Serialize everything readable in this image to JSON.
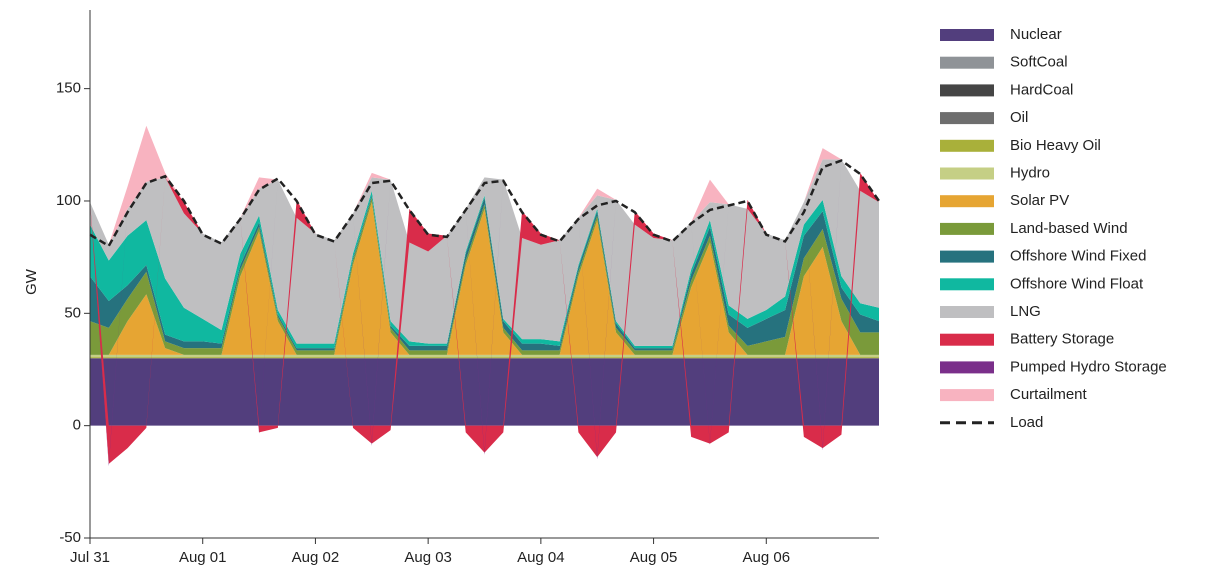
{
  "chart_data": {
    "type": "stacked-area",
    "y_label": "GW",
    "x": [
      0,
      4,
      8,
      12,
      16,
      20,
      24,
      28,
      32,
      36,
      40,
      44,
      48,
      52,
      56,
      60,
      64,
      68,
      72,
      76,
      80,
      84,
      88,
      92,
      96,
      100,
      104,
      108,
      112,
      116,
      120,
      124,
      128,
      132,
      136,
      140,
      144,
      148,
      152,
      156,
      160,
      164,
      168
    ],
    "xlim": [
      0,
      168
    ],
    "xticks": [
      {
        "value": 0,
        "label": "Jul 31"
      },
      {
        "value": 24,
        "label": "Aug 01"
      },
      {
        "value": 48,
        "label": "Aug 02"
      },
      {
        "value": 72,
        "label": "Aug 03"
      },
      {
        "value": 96,
        "label": "Aug 04"
      },
      {
        "value": 120,
        "label": "Aug 05"
      },
      {
        "value": 144,
        "label": "Aug 06"
      }
    ],
    "ylim": [
      -50,
      185
    ],
    "yticks": [
      -50,
      0,
      50,
      100,
      150
    ],
    "series": [
      {
        "name": "Nuclear",
        "color": "#523e7d",
        "values": [
          30,
          30,
          30,
          30,
          30,
          30,
          30,
          30,
          30,
          30,
          30,
          30,
          30,
          30,
          30,
          30,
          30,
          30,
          30,
          30,
          30,
          30,
          30,
          30,
          30,
          30,
          30,
          30,
          30,
          30,
          30,
          30,
          30,
          30,
          30,
          30,
          30,
          30,
          30,
          30,
          30,
          30,
          30
        ]
      },
      {
        "name": "SoftCoal",
        "color": "#8f9397",
        "values": [
          0,
          0,
          0,
          0,
          0,
          0,
          0,
          0,
          0,
          0,
          0,
          0,
          0,
          0,
          0,
          0,
          0,
          0,
          0,
          0,
          0,
          0,
          0,
          0,
          0,
          0,
          0,
          0,
          0,
          0,
          0,
          0,
          0,
          0,
          0,
          0,
          0,
          0,
          0,
          0,
          0,
          0,
          0
        ]
      },
      {
        "name": "HardCoal",
        "color": "#454545",
        "values": [
          0,
          0,
          0,
          0,
          0,
          0,
          0,
          0,
          0,
          0,
          0,
          0,
          0,
          0,
          0,
          0,
          0,
          0,
          0,
          0,
          0,
          0,
          0,
          0,
          0,
          0,
          0,
          0,
          0,
          0,
          0,
          0,
          0,
          0,
          0,
          0,
          0,
          0,
          0,
          0,
          0,
          0,
          0
        ]
      },
      {
        "name": "Oil",
        "color": "#6e6e6e",
        "values": [
          0,
          0,
          0,
          0,
          0,
          0,
          0,
          0,
          0,
          0,
          0,
          0,
          0,
          0,
          0,
          0,
          0,
          0,
          0,
          0,
          0,
          0,
          0,
          0,
          0,
          0,
          0,
          0,
          0,
          0,
          0,
          0,
          0,
          0,
          0,
          0,
          0,
          0,
          0,
          0,
          0,
          0,
          0
        ]
      },
      {
        "name": "Bio Heavy Oil",
        "color": "#a9b03a",
        "values": [
          0.5,
          0.5,
          0.5,
          0.5,
          0.5,
          0.5,
          0.5,
          0.5,
          0.5,
          0.5,
          0.5,
          0.5,
          0.5,
          0.5,
          0.5,
          0.5,
          0.5,
          0.5,
          0.5,
          0.5,
          0.5,
          0.5,
          0.5,
          0.5,
          0.5,
          0.5,
          0.5,
          0.5,
          0.5,
          0.5,
          0.5,
          0.5,
          0.5,
          0.5,
          0.5,
          0.5,
          0.5,
          0.5,
          0.5,
          0.5,
          0.5,
          0.5,
          0.5
        ]
      },
      {
        "name": "Hydro",
        "color": "#c5cf85",
        "values": [
          1,
          1,
          1,
          1,
          1,
          1,
          1,
          1,
          1,
          1,
          1,
          1,
          1,
          1,
          1,
          1,
          1,
          1,
          1,
          1,
          1,
          1,
          1,
          1,
          1,
          1,
          1,
          1,
          1,
          1,
          1,
          1,
          1,
          1,
          1,
          1,
          1,
          1,
          1,
          1,
          1,
          1,
          1
        ]
      },
      {
        "name": "Solar PV",
        "color": "#e6a533",
        "values": [
          0,
          0,
          15,
          27,
          3,
          0,
          0,
          0,
          35,
          55,
          15,
          0,
          0,
          0,
          40,
          68,
          10,
          0,
          0,
          0,
          40,
          65,
          10,
          0,
          0,
          0,
          35,
          60,
          10,
          0,
          0,
          0,
          30,
          50,
          10,
          0,
          0,
          0,
          35,
          48,
          15,
          0,
          0
        ]
      },
      {
        "name": "Land-based Wind",
        "color": "#7a9a3a",
        "values": [
          15,
          12,
          10,
          10,
          3,
          3,
          3,
          3,
          3,
          2,
          2,
          2,
          2,
          2,
          2,
          2,
          2,
          2,
          2,
          2,
          2,
          2,
          2,
          2,
          2,
          2,
          2,
          2,
          2,
          2,
          2,
          2,
          3,
          3,
          3,
          4,
          6,
          8,
          8,
          8,
          10,
          10,
          10
        ]
      },
      {
        "name": "Offshore Wind Fixed",
        "color": "#26727e",
        "values": [
          20,
          12,
          6,
          3,
          3,
          3,
          3,
          2,
          2,
          2,
          1,
          1,
          1,
          1,
          1,
          1,
          1,
          2,
          2,
          2,
          3,
          3,
          3,
          3,
          3,
          2,
          2,
          2,
          2,
          1,
          1,
          1,
          3,
          4,
          5,
          8,
          10,
          12,
          10,
          8,
          5,
          8,
          5
        ]
      },
      {
        "name": "Offshore Wind Float",
        "color": "#10b8a0",
        "values": [
          23,
          18,
          22,
          20,
          25,
          15,
          10,
          6,
          5,
          3,
          2,
          2,
          2,
          2,
          2,
          2,
          2,
          2,
          1,
          1,
          1,
          1,
          1,
          2,
          2,
          2,
          1,
          1,
          1,
          1,
          1,
          1,
          2,
          3,
          4,
          4,
          4,
          6,
          5,
          5,
          5,
          5,
          6
        ]
      },
      {
        "name": "LNG",
        "color": "#bfbfc1",
        "values": [
          10,
          7,
          12,
          17,
          45,
          42,
          38,
          39,
          16,
          12,
          58,
          56,
          49,
          46,
          18,
          6,
          63,
          44,
          41,
          48,
          19,
          8,
          62,
          45,
          42,
          45,
          21,
          6,
          54,
          54,
          48,
          47,
          21,
          8,
          45,
          49,
          34,
          25,
          10,
          18,
          52,
          50,
          47
        ]
      },
      {
        "name": "Battery Storage",
        "color": "#d92c4a",
        "values": [
          0,
          -17,
          -10,
          -1,
          0,
          5,
          0,
          0,
          0,
          -3,
          -1,
          8,
          0,
          0,
          -1,
          -8,
          -2,
          15,
          8,
          0,
          -3,
          -12,
          -3,
          12,
          5,
          0,
          -3,
          -14,
          -3,
          6,
          2,
          0,
          -5,
          -8,
          -3,
          4,
          0,
          0,
          -5,
          -10,
          -4,
          8,
          0
        ]
      },
      {
        "name": "Pumped Hydro Storage",
        "color": "#7a2f8a",
        "values": [
          0,
          -1,
          0,
          0,
          0,
          0,
          0,
          0,
          0,
          -0.5,
          0,
          0,
          0,
          0,
          0,
          -1,
          0,
          0,
          0,
          0,
          0,
          -1,
          0,
          0,
          0,
          0,
          0,
          -1,
          0,
          0,
          0,
          0,
          0,
          -0.5,
          0,
          0,
          0,
          0,
          0,
          -1,
          0,
          0,
          0
        ]
      },
      {
        "name": "Curtailment",
        "color": "#f8b3c0",
        "values": [
          0,
          0,
          10,
          25,
          2,
          0,
          0,
          0,
          0,
          5,
          0,
          0,
          0,
          0,
          0,
          2,
          0,
          0,
          0,
          0,
          0,
          0,
          0,
          0,
          0,
          0,
          0,
          3,
          0,
          0,
          0,
          0,
          0,
          10,
          0,
          0,
          0,
          0,
          0,
          5,
          0,
          0,
          0
        ]
      }
    ],
    "load": {
      "name": "Load",
      "color": "#222222",
      "values": [
        85,
        80,
        95,
        108,
        111,
        100,
        85,
        81,
        92,
        105,
        110,
        100,
        85,
        82,
        94,
        108,
        109,
        96,
        85,
        84,
        96,
        108,
        109,
        95,
        85,
        82,
        92,
        98,
        100,
        95,
        85,
        82,
        90,
        96,
        98,
        100,
        85,
        82,
        95,
        115,
        118,
        112,
        100
      ]
    }
  }
}
